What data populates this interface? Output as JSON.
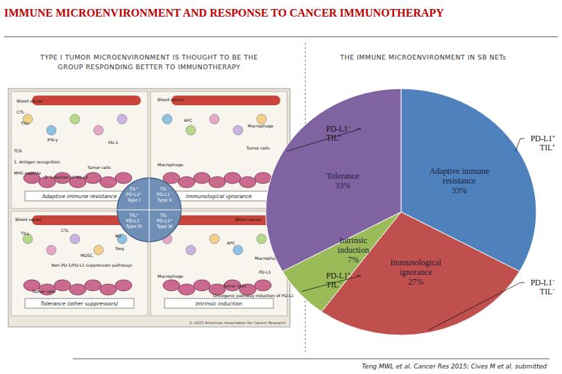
{
  "header": {
    "title": "IMMUNE MICROENVIRONMENT AND RESPONSE TO CANCER IMMUNOTHERAPY",
    "left_subtitle": "TYPE I TUMOR MICROENVIRONMENT IS THOUGHT TO BE THE GROUP RESPONDING BETTER TO IMMUNOTHERAPY",
    "right_subtitle": "THE IMMUNE MICROENVIRONMENT IN SB NETs"
  },
  "left_panel": {
    "quadrants": [
      {
        "caption": "Adaptive immune resistance",
        "center_label": [
          "TIL⁺",
          "PD-L1⁺",
          "Type I"
        ],
        "labels": [
          "Blood vessel",
          "CTL",
          "TILs",
          "IFN-γ",
          "1. Antigen recognition",
          "TCR",
          "MHC-peptide",
          "3. Induction of PD-L1",
          "PD-1",
          "Tumor cells"
        ]
      },
      {
        "caption": "Immunological ignorance",
        "center_label": [
          "TIL⁻",
          "PD-L1⁻",
          "Type II"
        ],
        "labels": [
          "Blood vessel",
          "APC",
          "Macrophage",
          "Macrophage",
          "Tumor cells"
        ]
      },
      {
        "caption": "Tolerance (other suppressors)",
        "center_label": [
          "TIL⁺",
          "PD-L1⁻",
          "Type IV"
        ],
        "labels": [
          "Blood vessel",
          "TILs",
          "CTL",
          "M2",
          "Treg",
          "MDSC",
          "Non-PD-1/PD-L1 suppression pathways",
          "Tumor cells"
        ]
      },
      {
        "caption": "Intrinsic induction",
        "center_label": [
          "TIL⁻",
          "PD-L1⁺",
          "Type III"
        ],
        "labels": [
          "Blood vessel",
          "APC",
          "Macrophage",
          "Macrophage",
          "PD-L1",
          "Tumor cells",
          "Oncogenic pathway induction of PD-L1"
        ]
      }
    ],
    "copyright": "© 2015 American Association for Cancer Research"
  },
  "chart_data": {
    "type": "pie",
    "title": "THE IMMUNE MICROENVIRONMENT IN SB NETs",
    "categories": [
      "Adaptive immune resistance",
      "Immunological ignorance",
      "Intrinsic induction",
      "Tolerance"
    ],
    "values": [
      33,
      27,
      7,
      33
    ],
    "value_labels": [
      "33%",
      "27%",
      "7%",
      "33%"
    ],
    "colors": [
      "#4f81bd",
      "#c0504d",
      "#9bbb59",
      "#8064a2"
    ],
    "data_labels": true,
    "annotations": [
      {
        "lines": [
          "PD-L1⁺",
          "TIL⁺"
        ]
      },
      {
        "lines": [
          "PD-L1⁻",
          "TIL⁻"
        ]
      },
      {
        "lines": [
          "PD-L1⁺",
          "TIL⁻"
        ]
      },
      {
        "lines": [
          "PD-L1⁻",
          "TIL⁺"
        ]
      }
    ]
  },
  "footer": {
    "citation": "Teng MWL et al. Cancer Res 2015; Cives M et al. submitted"
  }
}
